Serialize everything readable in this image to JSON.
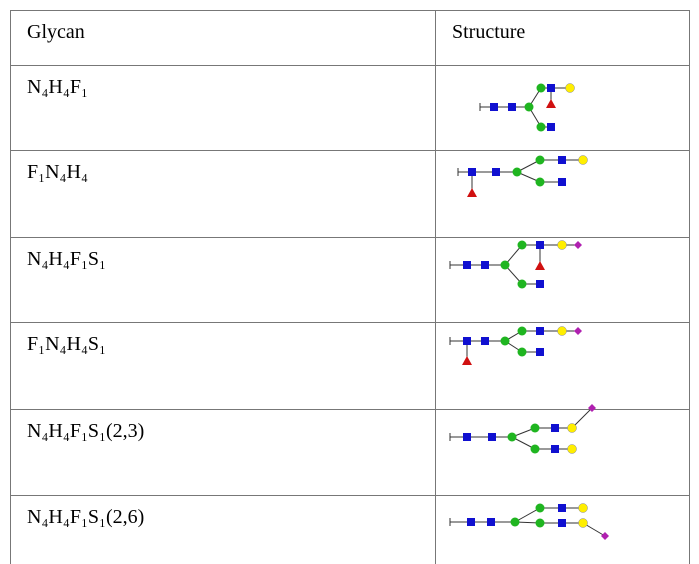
{
  "table": {
    "header": [
      "Glycan",
      "Structure"
    ],
    "rows": [
      {
        "glycan": "N₄H₄F₁"
      },
      {
        "glycan": "F₁N₄H₄"
      },
      {
        "glycan": "N₄H₄F₁S₁"
      },
      {
        "glycan": "F₁N₄H₄S₁"
      },
      {
        "glycan": "N₄H₄F₁S₁(2,3)"
      },
      {
        "glycan": "N₄H₄F₁S₁(2,6)"
      }
    ]
  }
}
